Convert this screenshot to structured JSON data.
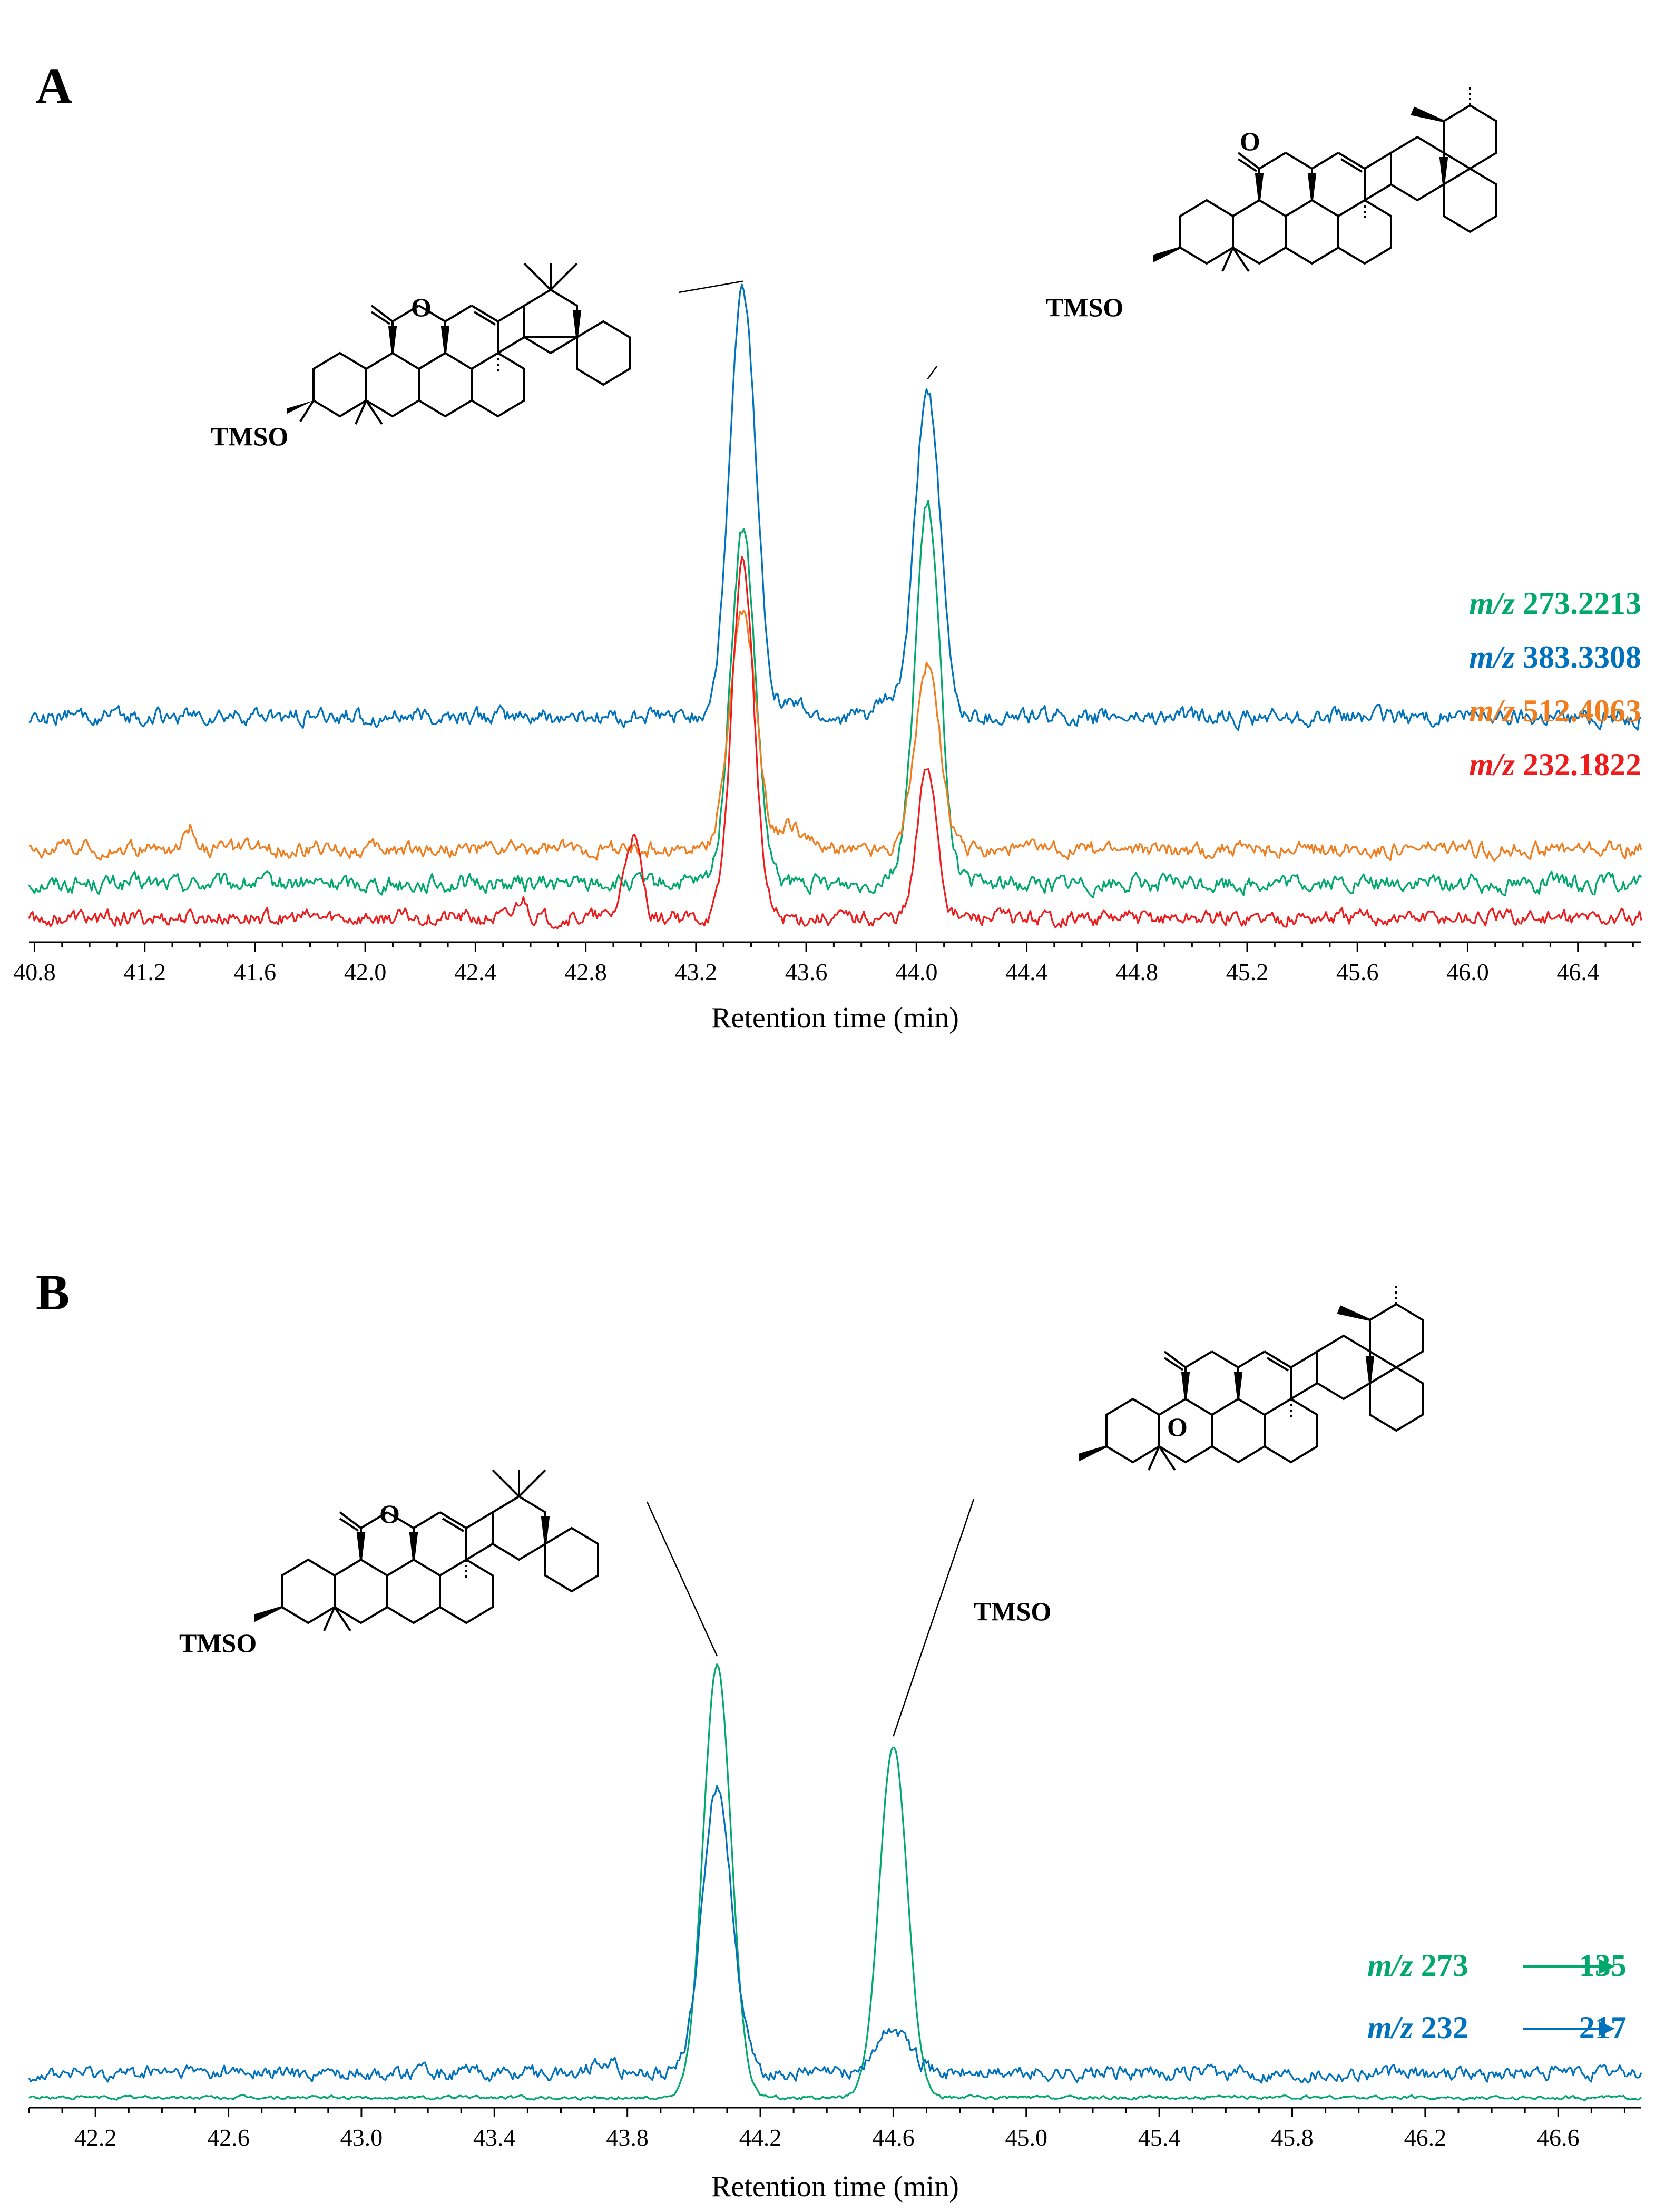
{
  "colors": {
    "green": "#00a86b",
    "blue": "#0072bd",
    "orange": "#f07d1e",
    "red": "#ee1c1c",
    "axis": "#000000"
  },
  "panels": {
    "A": {
      "letter": "A"
    },
    "B": {
      "letter": "B"
    }
  },
  "structures": {
    "tmso": "TMSO",
    "oxo": "O"
  },
  "chart_data": [
    {
      "panel": "A",
      "type": "line",
      "title": "",
      "xlabel": "Retention time (min)",
      "ylabel": "",
      "xlim": [
        40.78,
        46.63
      ],
      "xticks": [
        "40.8",
        "41.2",
        "41.6",
        "42.0",
        "42.4",
        "42.8",
        "43.2",
        "43.6",
        "44.0",
        "44.4",
        "44.8",
        "45.2",
        "45.6",
        "46.0",
        "46.4"
      ],
      "legend_position": "right",
      "series": [
        {
          "name": "273.2213",
          "prefix": "m/z",
          "color": "#00a86b",
          "baseline": 0.1,
          "noise": 0.013,
          "peaks": [
            [
              43.37,
              0.72,
              0.045
            ],
            [
              44.04,
              0.77,
              0.045
            ]
          ],
          "small_peaks": [
            [
              43.9,
              0.02,
              0.03
            ]
          ]
        },
        {
          "name": "383.3308",
          "prefix": "m/z",
          "color": "#0072bd",
          "baseline": 0.44,
          "noise": 0.013,
          "peaks": [
            [
              43.37,
              0.87,
              0.048
            ],
            [
              44.04,
              0.67,
              0.045
            ]
          ],
          "small_peaks": [
            [
              43.55,
              0.03,
              0.04
            ],
            [
              43.9,
              0.03,
              0.04
            ]
          ]
        },
        {
          "name": "512.4063",
          "prefix": "m/z",
          "color": "#f07d1e",
          "baseline": 0.17,
          "noise": 0.012,
          "peaks": [
            [
              43.37,
              0.48,
              0.048
            ],
            [
              44.04,
              0.38,
              0.045
            ]
          ],
          "small_peaks": [
            [
              41.37,
              0.05,
              0.02
            ],
            [
              43.55,
              0.05,
              0.04
            ],
            [
              40.9,
              0.03,
              0.02
            ]
          ]
        },
        {
          "name": "232.1822",
          "prefix": "m/z",
          "color": "#ee1c1c",
          "baseline": 0.03,
          "noise": 0.012,
          "peaks": [
            [
              43.37,
              0.73,
              0.04
            ],
            [
              44.04,
              0.31,
              0.035
            ]
          ],
          "small_peaks": [
            [
              42.97,
              0.17,
              0.03
            ],
            [
              42.57,
              0.04,
              0.02
            ]
          ]
        }
      ],
      "annotations": [
        {
          "compound": "oleanane",
          "peak_x": 43.37
        },
        {
          "compound": "ursane",
          "peak_x": 44.04
        }
      ]
    },
    {
      "panel": "B",
      "type": "line",
      "title": "",
      "xlabel": "Retention time (min)",
      "ylabel": "",
      "xlim": [
        42.0,
        46.85
      ],
      "xticks": [
        "42.2",
        "42.6",
        "43.0",
        "43.4",
        "43.8",
        "44.2",
        "44.6",
        "45.0",
        "45.4",
        "45.8",
        "46.2",
        "46.6"
      ],
      "legend_position": "right",
      "series": [
        {
          "name": "273",
          "to": "135",
          "prefix": "m/z",
          "color": "#00a86b",
          "baseline": 0.005,
          "noise": 0.003,
          "peaks": [
            [
              44.07,
              0.97,
              0.042
            ],
            [
              44.6,
              0.79,
              0.042
            ]
          ],
          "small_peaks": []
        },
        {
          "name": "232",
          "to": "217",
          "prefix": "m/z",
          "color": "#0072bd",
          "baseline": 0.06,
          "noise": 0.012,
          "peaks": [
            [
              44.07,
              0.64,
              0.045
            ],
            [
              44.6,
              0.1,
              0.05
            ]
          ],
          "small_peaks": [
            [
              43.73,
              0.03,
              0.03
            ]
          ]
        }
      ],
      "annotations": [
        {
          "compound": "oleanane",
          "peak_x": 44.07
        },
        {
          "compound": "ursane",
          "peak_x": 44.6
        }
      ]
    }
  ]
}
